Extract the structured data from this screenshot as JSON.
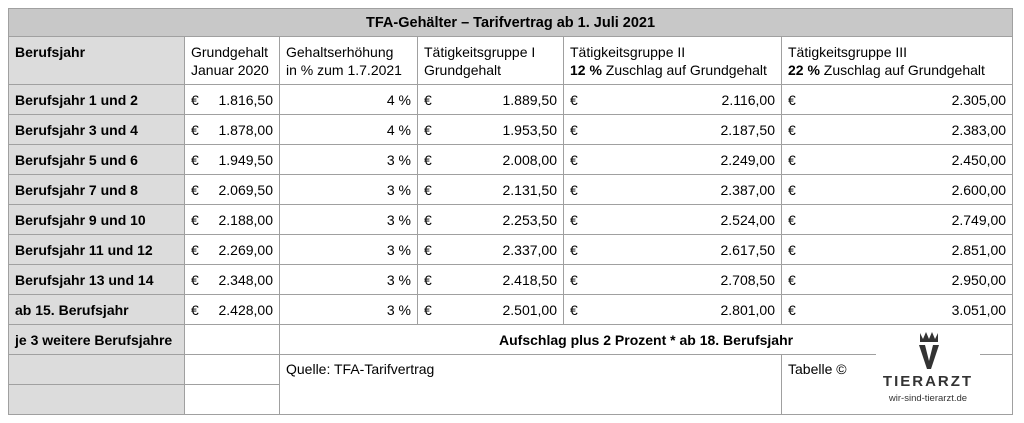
{
  "title": "TFA-Gehälter – Tarifvertrag ab 1. Juli 2021",
  "header": {
    "col1": "Berufsjahr",
    "col2_line1": "Grundgehalt",
    "col2_line2": "Januar 2020",
    "col3_line1": "Gehaltserhöhung",
    "col3_line2": "in % zum 1.7.2021",
    "col4_line1": "Tätigkeitsgruppe I",
    "col4_line2": "Grundgehalt",
    "col5_line1": "Tätigkeitsgruppe II",
    "col5_bold": "12 %",
    "col5_rest": " Zuschlag auf Grundgehalt",
    "col6_line1": "Tätigkeitsgruppe III",
    "col6_bold": "22 %",
    "col6_rest": " Zuschlag auf Grundgehalt"
  },
  "currency": "€",
  "rows": [
    {
      "label": "Berufsjahr 1 und 2",
      "base": "1.816,50",
      "pct": "4 %",
      "g1": "1.889,50",
      "g2": "2.116,00",
      "g3": "2.305,00"
    },
    {
      "label": "Berufsjahr 3 und 4",
      "base": "1.878,00",
      "pct": "4 %",
      "g1": "1.953,50",
      "g2": "2.187,50",
      "g3": "2.383,00"
    },
    {
      "label": "Berufsjahr 5 und 6",
      "base": "1.949,50",
      "pct": "3 %",
      "g1": "2.008,00",
      "g2": "2.249,00",
      "g3": "2.450,00"
    },
    {
      "label": "Berufsjahr 7 und 8",
      "base": "2.069,50",
      "pct": "3 %",
      "g1": "2.131,50",
      "g2": "2.387,00",
      "g3": "2.600,00"
    },
    {
      "label": "Berufsjahr 9 und 10",
      "base": "2.188,00",
      "pct": "3 %",
      "g1": "2.253,50",
      "g2": "2.524,00",
      "g3": "2.749,00"
    },
    {
      "label": "Berufsjahr 11 und 12",
      "base": "2.269,00",
      "pct": "3 %",
      "g1": "2.337,00",
      "g2": "2.617,50",
      "g3": "2.851,00"
    },
    {
      "label": "Berufsjahr 13 und 14",
      "base": "2.348,00",
      "pct": "3 %",
      "g1": "2.418,50",
      "g2": "2.708,50",
      "g3": "2.950,00"
    },
    {
      "label": "ab 15. Berufsjahr",
      "base": "2.428,00",
      "pct": "3 %",
      "g1": "2.501,00",
      "g2": "2.801,00",
      "g3": "3.051,00"
    }
  ],
  "extra_row": {
    "label": "je 3 weitere Berufsjahre",
    "note": "Aufschlag plus 2 Prozent * ab 18. Berufsjahr"
  },
  "source": "Quelle: TFA-Tarifvertrag",
  "table_credit": "Tabelle ©",
  "logo": {
    "icon": "tierarzt-v-crown-icon",
    "name": "TIERARZT",
    "url": "wir-sind-tierarzt.de"
  }
}
